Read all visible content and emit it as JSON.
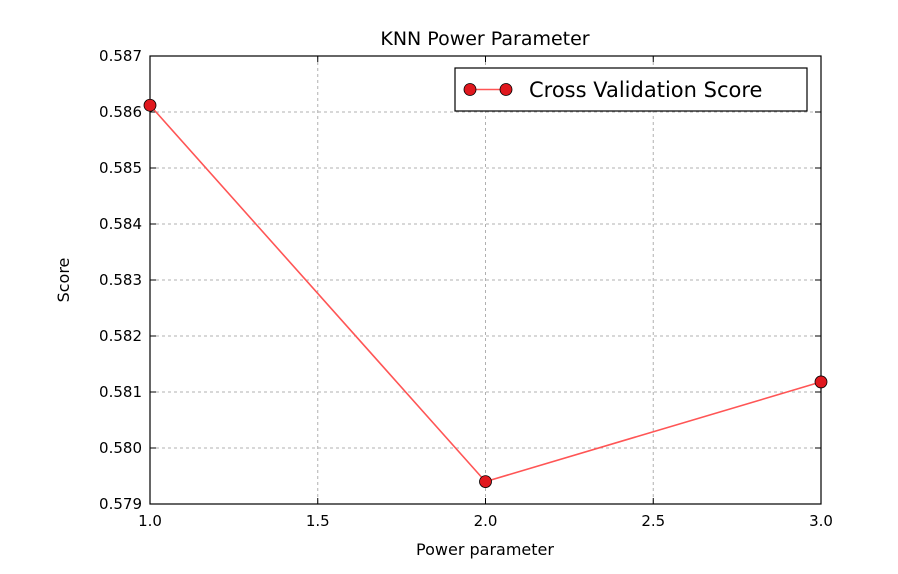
{
  "chart_data": {
    "type": "line",
    "title": "KNN Power Parameter",
    "xlabel": "Power parameter",
    "ylabel": "Score",
    "xlim": [
      1.0,
      3.0
    ],
    "ylim": [
      0.579,
      0.587
    ],
    "xticks": [
      "1.0",
      "1.5",
      "2.0",
      "2.5",
      "3.0"
    ],
    "yticks": [
      "0.579",
      "0.580",
      "0.581",
      "0.582",
      "0.583",
      "0.584",
      "0.585",
      "0.586",
      "0.587"
    ],
    "grid": true,
    "legend_position": "top-right",
    "series": [
      {
        "name": "Cross Validation Score",
        "color": "#ff5555",
        "marker_color": "#e0181e",
        "x": [
          1.0,
          2.0,
          3.0
        ],
        "y": [
          0.58612,
          0.5794,
          0.58118
        ]
      }
    ]
  }
}
